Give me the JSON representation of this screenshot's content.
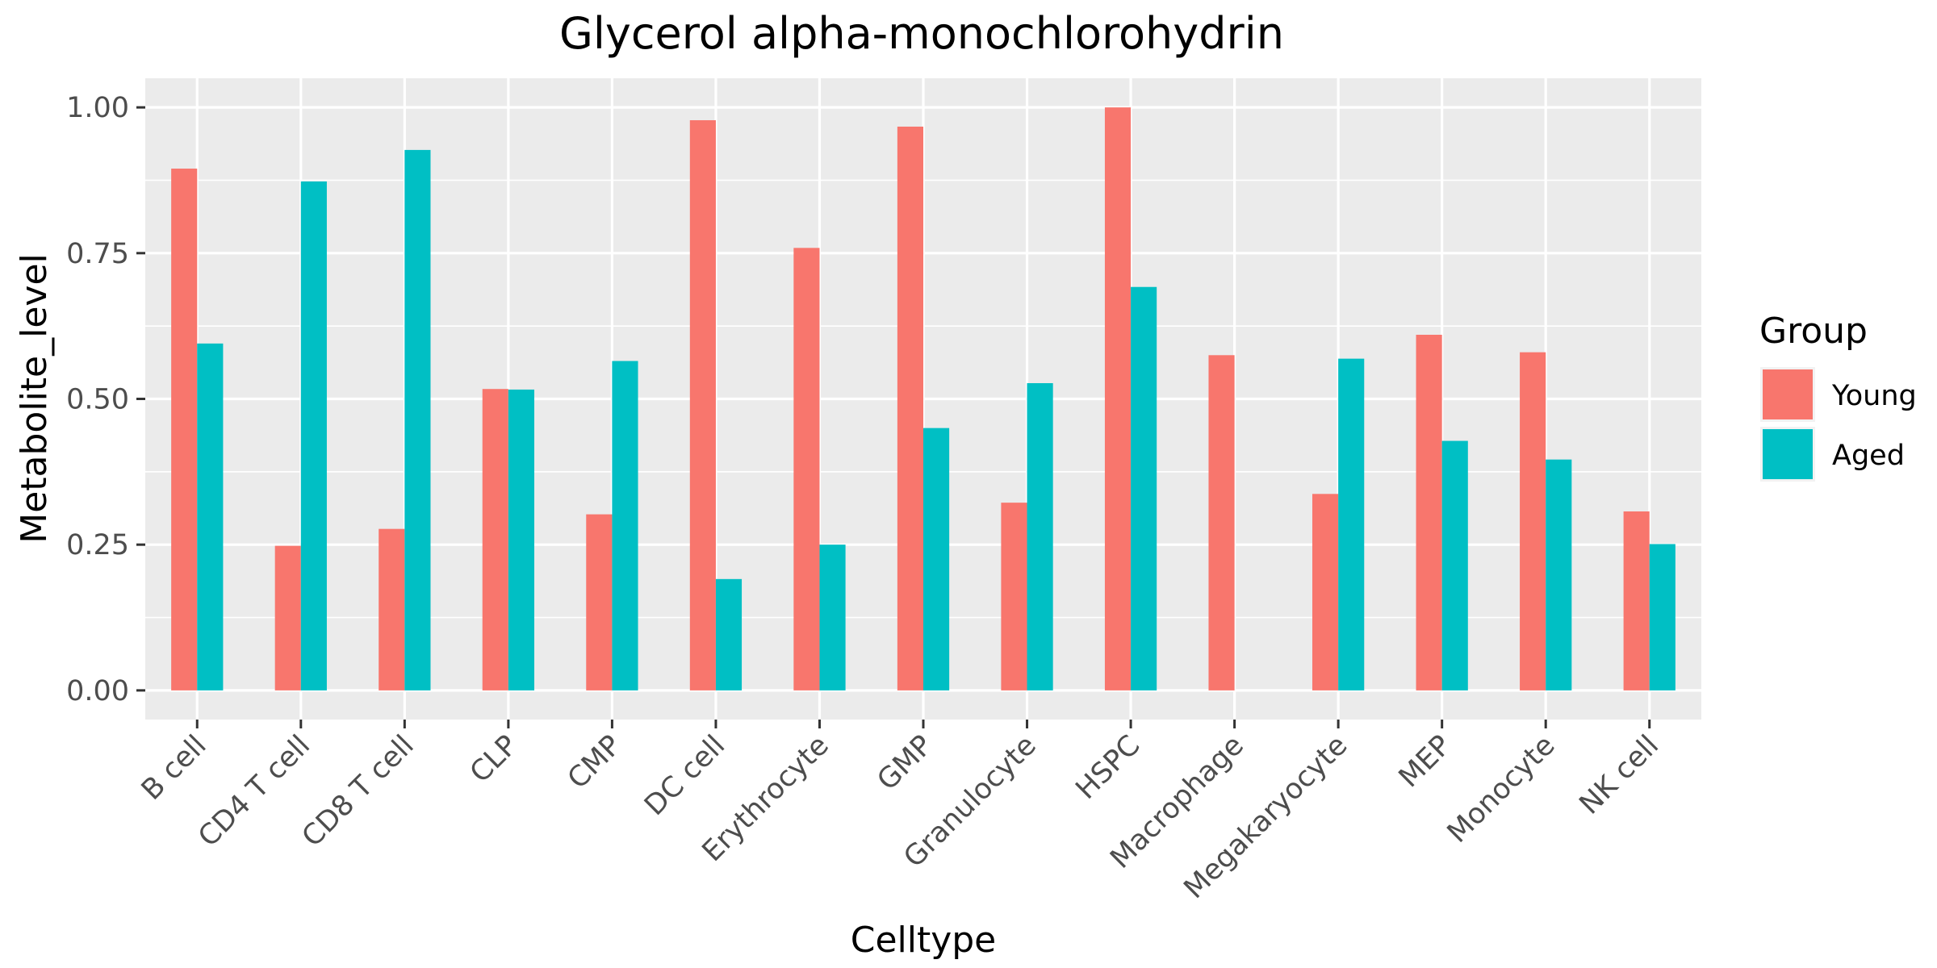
{
  "chart_data": {
    "type": "bar",
    "title": "Glycerol alpha-monochlorohydrin",
    "xlabel": "Celltype",
    "ylabel": "Metabolite_level",
    "ylim": [
      -0.05,
      1.05
    ],
    "yticks": [
      "0.00",
      "0.25",
      "0.50",
      "0.75",
      "1.00"
    ],
    "ytick_values": [
      0,
      0.25,
      0.5,
      0.75,
      1.0
    ],
    "grid": true,
    "legend_position": "right",
    "legend_title": "Group",
    "categories": [
      "B cell",
      "CD4 T cell",
      "CD8 T cell",
      "CLP",
      "CMP",
      "DC cell",
      "Erythrocyte",
      "GMP",
      "Granulocyte",
      "HSPC",
      "Macrophage",
      "Megakaryocyte",
      "MEP",
      "Monocyte",
      "NK cell"
    ],
    "series": [
      {
        "name": "Young",
        "color": "#F8766D",
        "values": [
          0.895,
          0.248,
          0.277,
          0.517,
          0.302,
          0.978,
          0.759,
          0.967,
          0.322,
          1.0,
          0.575,
          0.337,
          0.61,
          0.58,
          0.307
        ]
      },
      {
        "name": "Aged",
        "color": "#00BFC4",
        "values": [
          0.595,
          0.873,
          0.927,
          0.516,
          0.565,
          0.191,
          0.25,
          0.45,
          0.527,
          0.692,
          0.0,
          0.569,
          0.428,
          0.396,
          0.251
        ]
      }
    ]
  },
  "colors": {
    "panel_background": "#EBEBEB",
    "grid_line": "#FFFFFF",
    "tick_mark": "#333333"
  }
}
